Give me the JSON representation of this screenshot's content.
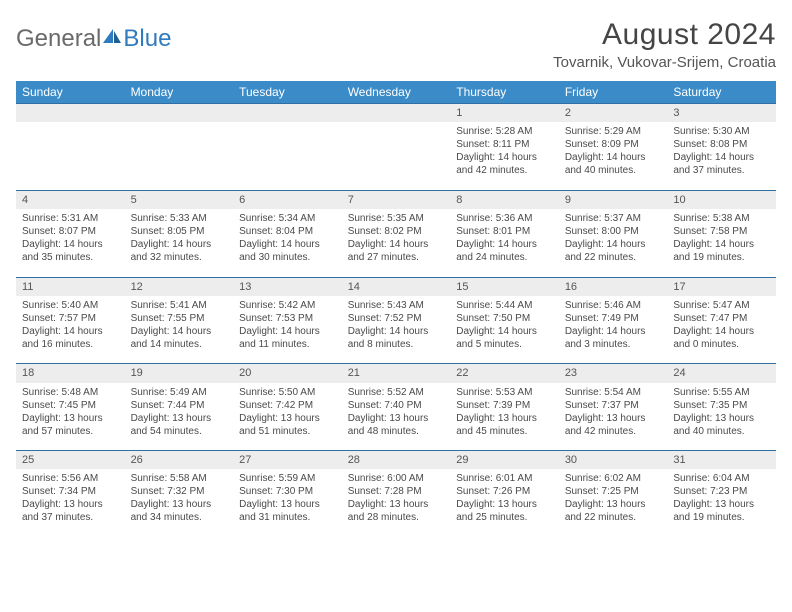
{
  "brand": {
    "part1": "General",
    "part2": "Blue"
  },
  "title": "August 2024",
  "location": "Tovarnik, Vukovar-Srijem, Croatia",
  "colors": {
    "header_bg": "#3b8bc8",
    "header_text": "#ffffff",
    "daynum_bg": "#ededed",
    "row_divider": "#2f6fa3",
    "body_text": "#4a4a4a",
    "title_text": "#454545",
    "brand_gray": "#6a6a6a",
    "brand_blue": "#2f7bbf",
    "background": "#ffffff"
  },
  "day_headers": [
    "Sunday",
    "Monday",
    "Tuesday",
    "Wednesday",
    "Thursday",
    "Friday",
    "Saturday"
  ],
  "weeks": [
    {
      "nums": [
        "",
        "",
        "",
        "",
        "1",
        "2",
        "3"
      ],
      "cells": [
        null,
        null,
        null,
        null,
        {
          "sunrise": "5:28 AM",
          "sunset": "8:11 PM",
          "daylight": "14 hours and 42 minutes."
        },
        {
          "sunrise": "5:29 AM",
          "sunset": "8:09 PM",
          "daylight": "14 hours and 40 minutes."
        },
        {
          "sunrise": "5:30 AM",
          "sunset": "8:08 PM",
          "daylight": "14 hours and 37 minutes."
        }
      ]
    },
    {
      "nums": [
        "4",
        "5",
        "6",
        "7",
        "8",
        "9",
        "10"
      ],
      "cells": [
        {
          "sunrise": "5:31 AM",
          "sunset": "8:07 PM",
          "daylight": "14 hours and 35 minutes."
        },
        {
          "sunrise": "5:33 AM",
          "sunset": "8:05 PM",
          "daylight": "14 hours and 32 minutes."
        },
        {
          "sunrise": "5:34 AM",
          "sunset": "8:04 PM",
          "daylight": "14 hours and 30 minutes."
        },
        {
          "sunrise": "5:35 AM",
          "sunset": "8:02 PM",
          "daylight": "14 hours and 27 minutes."
        },
        {
          "sunrise": "5:36 AM",
          "sunset": "8:01 PM",
          "daylight": "14 hours and 24 minutes."
        },
        {
          "sunrise": "5:37 AM",
          "sunset": "8:00 PM",
          "daylight": "14 hours and 22 minutes."
        },
        {
          "sunrise": "5:38 AM",
          "sunset": "7:58 PM",
          "daylight": "14 hours and 19 minutes."
        }
      ]
    },
    {
      "nums": [
        "11",
        "12",
        "13",
        "14",
        "15",
        "16",
        "17"
      ],
      "cells": [
        {
          "sunrise": "5:40 AM",
          "sunset": "7:57 PM",
          "daylight": "14 hours and 16 minutes."
        },
        {
          "sunrise": "5:41 AM",
          "sunset": "7:55 PM",
          "daylight": "14 hours and 14 minutes."
        },
        {
          "sunrise": "5:42 AM",
          "sunset": "7:53 PM",
          "daylight": "14 hours and 11 minutes."
        },
        {
          "sunrise": "5:43 AM",
          "sunset": "7:52 PM",
          "daylight": "14 hours and 8 minutes."
        },
        {
          "sunrise": "5:44 AM",
          "sunset": "7:50 PM",
          "daylight": "14 hours and 5 minutes."
        },
        {
          "sunrise": "5:46 AM",
          "sunset": "7:49 PM",
          "daylight": "14 hours and 3 minutes."
        },
        {
          "sunrise": "5:47 AM",
          "sunset": "7:47 PM",
          "daylight": "14 hours and 0 minutes."
        }
      ]
    },
    {
      "nums": [
        "18",
        "19",
        "20",
        "21",
        "22",
        "23",
        "24"
      ],
      "cells": [
        {
          "sunrise": "5:48 AM",
          "sunset": "7:45 PM",
          "daylight": "13 hours and 57 minutes."
        },
        {
          "sunrise": "5:49 AM",
          "sunset": "7:44 PM",
          "daylight": "13 hours and 54 minutes."
        },
        {
          "sunrise": "5:50 AM",
          "sunset": "7:42 PM",
          "daylight": "13 hours and 51 minutes."
        },
        {
          "sunrise": "5:52 AM",
          "sunset": "7:40 PM",
          "daylight": "13 hours and 48 minutes."
        },
        {
          "sunrise": "5:53 AM",
          "sunset": "7:39 PM",
          "daylight": "13 hours and 45 minutes."
        },
        {
          "sunrise": "5:54 AM",
          "sunset": "7:37 PM",
          "daylight": "13 hours and 42 minutes."
        },
        {
          "sunrise": "5:55 AM",
          "sunset": "7:35 PM",
          "daylight": "13 hours and 40 minutes."
        }
      ]
    },
    {
      "nums": [
        "25",
        "26",
        "27",
        "28",
        "29",
        "30",
        "31"
      ],
      "cells": [
        {
          "sunrise": "5:56 AM",
          "sunset": "7:34 PM",
          "daylight": "13 hours and 37 minutes."
        },
        {
          "sunrise": "5:58 AM",
          "sunset": "7:32 PM",
          "daylight": "13 hours and 34 minutes."
        },
        {
          "sunrise": "5:59 AM",
          "sunset": "7:30 PM",
          "daylight": "13 hours and 31 minutes."
        },
        {
          "sunrise": "6:00 AM",
          "sunset": "7:28 PM",
          "daylight": "13 hours and 28 minutes."
        },
        {
          "sunrise": "6:01 AM",
          "sunset": "7:26 PM",
          "daylight": "13 hours and 25 minutes."
        },
        {
          "sunrise": "6:02 AM",
          "sunset": "7:25 PM",
          "daylight": "13 hours and 22 minutes."
        },
        {
          "sunrise": "6:04 AM",
          "sunset": "7:23 PM",
          "daylight": "13 hours and 19 minutes."
        }
      ]
    }
  ],
  "labels": {
    "sunrise": "Sunrise: ",
    "sunset": "Sunset: ",
    "daylight": "Daylight: "
  }
}
